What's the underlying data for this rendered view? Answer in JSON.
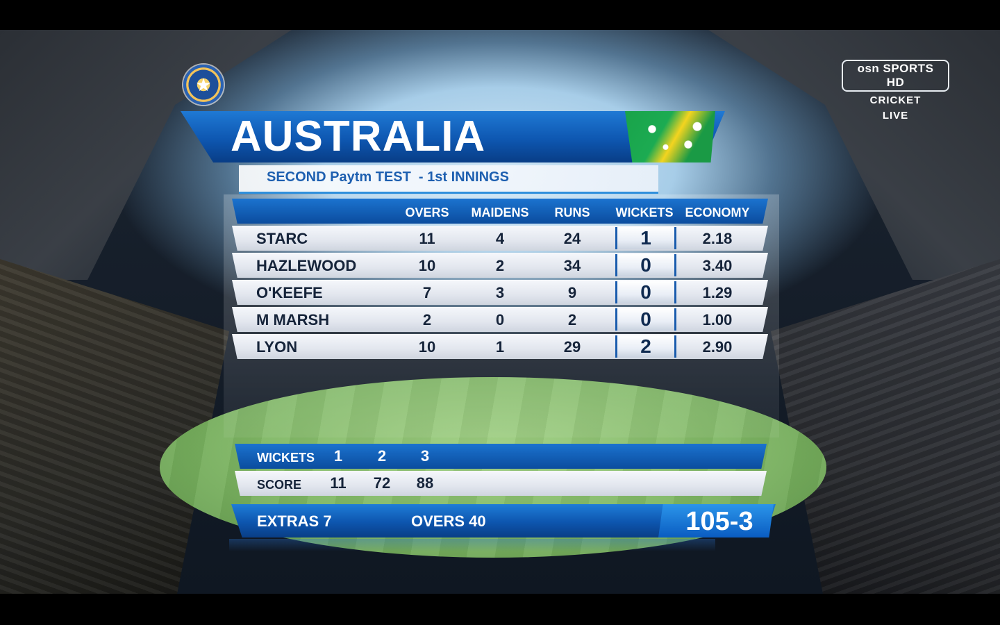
{
  "channel": {
    "name": "osn SPORTS HD",
    "line1": "CRICKET",
    "line2": "LIVE"
  },
  "board_logo_icon": "cricket-board-star-logo",
  "team": "AUSTRALIA",
  "match": "SECOND Paytm TEST  - 1st INNINGS",
  "flag_icon": "australia-flag",
  "columns": [
    "OVERS",
    "MAIDENS",
    "RUNS",
    "WICKETS",
    "ECONOMY"
  ],
  "bowlers": [
    {
      "name": "STARC",
      "overs": "11",
      "maidens": "4",
      "runs": "24",
      "wickets": "1",
      "economy": "2.18"
    },
    {
      "name": "HAZLEWOOD",
      "overs": "10",
      "maidens": "2",
      "runs": "34",
      "wickets": "0",
      "economy": "3.40"
    },
    {
      "name": "O'KEEFE",
      "overs": "7",
      "maidens": "3",
      "runs": "9",
      "wickets": "0",
      "economy": "1.29"
    },
    {
      "name": "M MARSH",
      "overs": "2",
      "maidens": "0",
      "runs": "2",
      "wickets": "0",
      "economy": "1.00"
    },
    {
      "name": "LYON",
      "overs": "10",
      "maidens": "1",
      "runs": "29",
      "wickets": "2",
      "economy": "2.90"
    }
  ],
  "fall_of_wickets": {
    "wickets_label": "WICKETS",
    "score_label": "SCORE",
    "wickets": [
      "1",
      "2",
      "3"
    ],
    "scores": [
      "11",
      "72",
      "88"
    ]
  },
  "totals": {
    "extras": "EXTRAS 7",
    "overs": "OVERS 40",
    "score": "105-3"
  },
  "colors": {
    "primary_blue": "#0e57b1",
    "accent_blue": "#2b95ea",
    "row_text": "#16243a"
  }
}
